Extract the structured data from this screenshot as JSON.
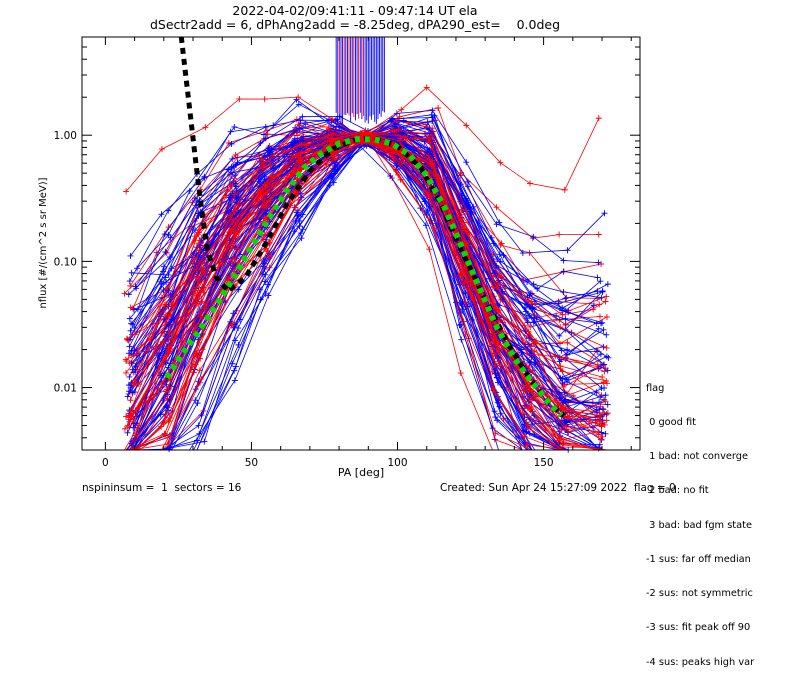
{
  "title_line1": "2022-04-02/09:41:11 - 09:47:14 UT ela",
  "title_line2": "dSectr2add = 6, dPhAng2add = -8.25deg, dPA290_est=    0.0deg",
  "footer_left": "nspininsum =  1  sectors = 16",
  "footer_right": "Created: Sun Apr 24 15:27:09 2022  flag = 0",
  "legend": {
    "heading": "flag",
    "items": [
      " 0 good fit",
      " 1 bad: not converge",
      " 2 bad: no fit",
      " 3 bad: bad fgm state",
      "-1 sus: far off median",
      "-2 sus: not symmetric",
      "-3 sus: fit peak off 90",
      "-4 sus: peaks high var"
    ]
  },
  "colors": {
    "red_series": "#ff0000",
    "blue_series": "#0000ff",
    "black_fit": "#000000",
    "green_fit": "#00dd00",
    "axes": "#000000"
  },
  "chart_data": {
    "type": "line",
    "xlabel": "PA [deg]",
    "ylabel": "nflux [#/(cm^2 s sr MeV)]",
    "xlim": [
      -8,
      183
    ],
    "ylim": [
      0.0032,
      6
    ],
    "yscale": "log",
    "x_ticks": [
      0,
      50,
      100,
      150
    ],
    "x_tick_labels": [
      "0",
      "50",
      "100",
      "150"
    ],
    "y_ticks": [
      0.01,
      0.1,
      1.0
    ],
    "y_tick_labels": [
      "0.01",
      "0.10",
      "1.00"
    ],
    "grid": false,
    "legend_position": "right",
    "pa_grid_x": [
      9,
      21,
      32,
      44,
      55,
      66,
      78,
      89,
      100,
      111,
      123,
      134,
      145,
      157,
      170
    ],
    "typical_profile": [
      0.006,
      0.018,
      0.06,
      0.18,
      0.34,
      0.62,
      0.84,
      0.95,
      0.84,
      0.56,
      0.12,
      0.03,
      0.012,
      0.006,
      0.005
    ],
    "series_summary": [
      {
        "color": "red",
        "count": 60
      },
      {
        "color": "blue",
        "count": 80
      }
    ],
    "fit_black": {
      "style": "dashed",
      "points": [
        {
          "x": 26,
          "y": 6.0
        },
        {
          "x": 29,
          "y": 1.5
        },
        {
          "x": 31,
          "y": 0.6
        },
        {
          "x": 33,
          "y": 0.25
        },
        {
          "x": 35,
          "y": 0.12
        },
        {
          "x": 38,
          "y": 0.075
        },
        {
          "x": 42,
          "y": 0.058
        },
        {
          "x": 48,
          "y": 0.075
        },
        {
          "x": 55,
          "y": 0.14
        },
        {
          "x": 62,
          "y": 0.28
        },
        {
          "x": 70,
          "y": 0.52
        },
        {
          "x": 78,
          "y": 0.78
        },
        {
          "x": 86,
          "y": 0.93
        },
        {
          "x": 92,
          "y": 0.95
        },
        {
          "x": 100,
          "y": 0.82
        },
        {
          "x": 108,
          "y": 0.55
        },
        {
          "x": 115,
          "y": 0.28
        },
        {
          "x": 122,
          "y": 0.12
        },
        {
          "x": 130,
          "y": 0.05
        },
        {
          "x": 138,
          "y": 0.022
        },
        {
          "x": 145,
          "y": 0.012
        },
        {
          "x": 152,
          "y": 0.0075
        },
        {
          "x": 157,
          "y": 0.006
        }
      ]
    },
    "fit_green": {
      "style": "dotted",
      "points": [
        {
          "x": 21,
          "y": 0.012
        },
        {
          "x": 26,
          "y": 0.018
        },
        {
          "x": 32,
          "y": 0.028
        },
        {
          "x": 38,
          "y": 0.045
        },
        {
          "x": 44,
          "y": 0.075
        },
        {
          "x": 50,
          "y": 0.13
        },
        {
          "x": 56,
          "y": 0.22
        },
        {
          "x": 62,
          "y": 0.36
        },
        {
          "x": 68,
          "y": 0.55
        },
        {
          "x": 74,
          "y": 0.72
        },
        {
          "x": 80,
          "y": 0.86
        },
        {
          "x": 86,
          "y": 0.93
        },
        {
          "x": 92,
          "y": 0.93
        },
        {
          "x": 98,
          "y": 0.86
        },
        {
          "x": 104,
          "y": 0.7
        },
        {
          "x": 110,
          "y": 0.48
        },
        {
          "x": 116,
          "y": 0.27
        },
        {
          "x": 122,
          "y": 0.13
        },
        {
          "x": 128,
          "y": 0.062
        },
        {
          "x": 134,
          "y": 0.03
        },
        {
          "x": 140,
          "y": 0.017
        },
        {
          "x": 146,
          "y": 0.011
        },
        {
          "x": 152,
          "y": 0.0075
        },
        {
          "x": 156,
          "y": 0.006
        }
      ]
    },
    "peak_lines": {
      "x_range": [
        79,
        96
      ],
      "y_from": 1.2,
      "y_to": 6.0
    }
  }
}
